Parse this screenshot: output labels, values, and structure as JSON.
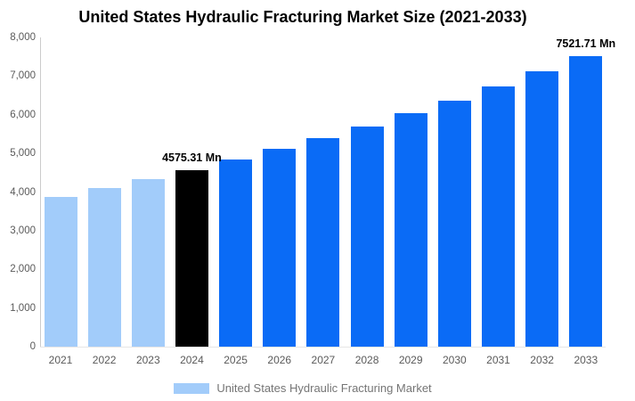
{
  "chart_data": {
    "type": "bar",
    "title": "United States Hydraulic Fracturing Market Size (2021-2033)",
    "unit": "Mn",
    "categories": [
      "2021",
      "2022",
      "2023",
      "2024",
      "2025",
      "2026",
      "2027",
      "2028",
      "2029",
      "2030",
      "2031",
      "2032",
      "2033"
    ],
    "values": [
      3880,
      4100,
      4330,
      4575.31,
      4835,
      5110,
      5400,
      5705,
      6030,
      6370,
      6735,
      7120,
      7521.71
    ],
    "segments": [
      "historical",
      "historical",
      "historical",
      "current",
      "forecast",
      "forecast",
      "forecast",
      "forecast",
      "forecast",
      "forecast",
      "forecast",
      "forecast",
      "forecast"
    ],
    "data_labels": [
      null,
      null,
      null,
      "4575.31 Mn",
      null,
      null,
      null,
      null,
      null,
      null,
      null,
      null,
      "7521.71 Mn"
    ],
    "xlabel": "",
    "ylabel": "",
    "ylim": [
      0,
      8000
    ],
    "y_ticks": [
      "0",
      "1,000",
      "2,000",
      "3,000",
      "4,000",
      "5,000",
      "6,000",
      "7,000",
      "8,000"
    ],
    "y_tick_values": [
      0,
      1000,
      2000,
      3000,
      4000,
      5000,
      6000,
      7000,
      8000
    ],
    "grid": false,
    "legend_position": "bottom",
    "legend": {
      "label": "United States Hydraulic Fracturing Market",
      "swatch_color": "#a2ccfa"
    },
    "colors": {
      "historical": "#a2ccfa",
      "current": "#000000",
      "forecast": "#0a6bf6",
      "title": "#000000",
      "axis_text": "#5a5a5a",
      "legend_text": "#757575",
      "axis_line": "#cccccc"
    }
  }
}
